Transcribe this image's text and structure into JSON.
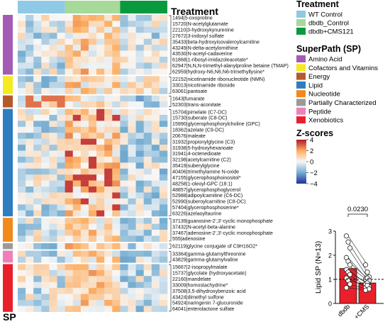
{
  "figure": {
    "treatment_title": "Treatment",
    "sp_label": "SP",
    "colors": {
      "wt": "#8fc9e6",
      "dbdb": "#a6d99a",
      "cms": "#0a9a3e",
      "amino_acid": "#a45bb5",
      "cofactors": "#f5ea1f",
      "energy": "#b5592b",
      "lipid": "#2e7dc0",
      "nucleotide": "#f28a1b",
      "partially": "#9a9a9a",
      "peptide": "#ef7fb8",
      "xenobiotics": "#e8202a",
      "zhigh": "#b2182b",
      "zmid": "#f7f7f7",
      "zlow": "#21309a"
    }
  },
  "chart_data": [
    {
      "type": "heatmap",
      "column_groups": [
        {
          "name": "WT Control",
          "count": 6,
          "color": "#8fc9e6"
        },
        {
          "name": "dbdb_Control",
          "count": 7,
          "color": "#a6d99a"
        },
        {
          "name": "dbdb+CMS121",
          "count": 6,
          "color": "#0a9a3e"
        }
      ],
      "rows": [
        {
          "label": "1494|5-oxoproline",
          "sp": "Amino Acid"
        },
        {
          "label": "15720|N-acetylglutamate",
          "sp": "Amino Acid"
        },
        {
          "label": "22110|3-hydroxykynurenine",
          "sp": "Amino Acid"
        },
        {
          "label": "27672|3-indoxyl sulfate",
          "sp": "Amino Acid"
        },
        {
          "label": "35433|beta-hydroxyisovaleroylcarnitine",
          "sp": "Amino Acid"
        },
        {
          "label": "43249|N-delta-acetylornithine",
          "sp": "Amino Acid"
        },
        {
          "label": "43530|N-acetyl-cadaverine",
          "sp": "Amino Acid"
        },
        {
          "label": "61868|1-ribosyl-imidazoleacetate*",
          "sp": "Amino Acid"
        },
        {
          "label": "62947|N,N,N-trimethyl-alanylproline betaine (TMAP)",
          "sp": "Amino Acid"
        },
        {
          "label": "62959|hydroxy-N6,N6,N6-trimethyllysine*",
          "sp": "Amino Acid"
        },
        {
          "label": "22152|nicotinamide ribonucleotide (NMN)",
          "sp": "Cofactors and Vitamins"
        },
        {
          "label": "33013|nicotinamide riboside",
          "sp": "Cofactors and Vitamins"
        },
        {
          "label": "63061|pantoate",
          "sp": "Cofactors and Vitamins"
        },
        {
          "label": "1643|fumarate",
          "sp": "Energy"
        },
        {
          "label": "52303|trans-aconitate",
          "sp": "Energy"
        },
        {
          "label": "15704|pimelate (C7-DC)",
          "sp": "Lipid"
        },
        {
          "label": "15730|suberate (C8-DC)",
          "sp": "Lipid"
        },
        {
          "label": "15990|glycerophosphorylcholine (GPC)",
          "sp": "Lipid"
        },
        {
          "label": "18362|azelate (C9-DC)",
          "sp": "Lipid"
        },
        {
          "label": "20676|maleate",
          "sp": "Lipid"
        },
        {
          "label": "31932|propionylglycine (C3)",
          "sp": "Lipid"
        },
        {
          "label": "31938|5-hydroxyhexanoate",
          "sp": "Lipid"
        },
        {
          "label": "31941|4-octenedioate",
          "sp": "Lipid"
        },
        {
          "label": "32198|acetylcarnitine (C2)",
          "sp": "Lipid"
        },
        {
          "label": "35419|suberylglycine",
          "sp": "Lipid"
        },
        {
          "label": "40406|trimethylamine N-oxide",
          "sp": "Lipid"
        },
        {
          "label": "47155|glycerophosphoinositol*",
          "sp": "Lipid"
        },
        {
          "label": "48258|1-oleoyl-GPC (18:1)",
          "sp": "Lipid"
        },
        {
          "label": "48857|glycerophosphoglycerol",
          "sp": "Lipid"
        },
        {
          "label": "52988|adipoylcarnitine (C6-DC)",
          "sp": "Lipid"
        },
        {
          "label": "52990|suberoylcarnitine (C8-DC)",
          "sp": "Lipid"
        },
        {
          "label": "57404|glycerophosphoserine*",
          "sp": "Lipid"
        },
        {
          "label": "63226|azelaoyltaurine",
          "sp": "Lipid"
        },
        {
          "label": "37139|guanosine-2',3'-cyclic monophosphate",
          "sp": "Nucleotide"
        },
        {
          "label": "37432|N-acetyl-beta-alanine",
          "sp": "Nucleotide"
        },
        {
          "label": "37467|adenosine-2',3'-cyclic monophosphate",
          "sp": "Nucleotide"
        },
        {
          "label": "555|adenosine",
          "sp": "Nucleotide"
        },
        {
          "label": "62119|glycine conjugate of C9H16O2*",
          "sp": "Partially Characterized"
        },
        {
          "label": "33364|gamma-glutamylthreonine",
          "sp": "Peptide"
        },
        {
          "label": "43829|gamma-glutamylvaline",
          "sp": "Peptide"
        },
        {
          "label": "15667|2-isopropylmalate",
          "sp": "Xenobiotics"
        },
        {
          "label": "15737|glycolate (hydroxyacetate)",
          "sp": "Xenobiotics"
        },
        {
          "label": "22160|mandelate",
          "sp": "Xenobiotics"
        },
        {
          "label": "33009|homostachydrine*",
          "sp": "Xenobiotics"
        },
        {
          "label": "37508|3,5-dihydroxybenzoic acid",
          "sp": "Xenobiotics"
        },
        {
          "label": "43424|dimethyl sulfone",
          "sp": "Xenobiotics"
        },
        {
          "label": "54924|naringenin 7-glucuronide",
          "sp": "Xenobiotics"
        },
        {
          "label": "64041|enterolactone sulfate",
          "sp": "Xenobiotics"
        }
      ],
      "superpaths": [
        {
          "name": "Amino Acid",
          "color": "#a45bb5"
        },
        {
          "name": "Cofactors and Vitamins",
          "color": "#f5ea1f"
        },
        {
          "name": "Energy",
          "color": "#b5592b"
        },
        {
          "name": "Lipid",
          "color": "#2e7dc0"
        },
        {
          "name": "Nucleotide",
          "color": "#f28a1b"
        },
        {
          "name": "Partially Characterized",
          "color": "#9a9a9a"
        },
        {
          "name": "Peptide",
          "color": "#ef7fb8"
        },
        {
          "name": "Xenobiotics",
          "color": "#e8202a"
        }
      ],
      "legend": {
        "treatment_title": "Treatment",
        "superpath_title": "SuperPath (SP)",
        "zscore_title": "Z-scores",
        "zscore_ticks": [
          4,
          2,
          0,
          -2,
          -4
        ]
      },
      "zrange": [
        -4,
        4
      ]
    },
    {
      "type": "bar",
      "ylabel": "Lipid SP (N=13)",
      "categories": [
        "dbdb",
        "+CMS"
      ],
      "values": [
        1.45,
        0.85
      ],
      "colors": [
        "#e8202a",
        "#e8202a"
      ],
      "ylim": [
        0,
        3
      ],
      "yticks": [
        0,
        1,
        2,
        3
      ],
      "reference_line": 1,
      "pvalue": "0.0230",
      "paired_points": [
        [
          2.8,
          1.6
        ],
        [
          2.55,
          1.3
        ],
        [
          2.3,
          1.1
        ],
        [
          1.9,
          1.0
        ],
        [
          1.75,
          1.05
        ],
        [
          1.6,
          0.95
        ],
        [
          1.4,
          0.8
        ],
        [
          1.3,
          0.85
        ],
        [
          1.2,
          0.7
        ],
        [
          1.05,
          0.65
        ],
        [
          0.95,
          0.75
        ],
        [
          0.8,
          0.6
        ],
        [
          0.65,
          0.55
        ]
      ]
    }
  ]
}
